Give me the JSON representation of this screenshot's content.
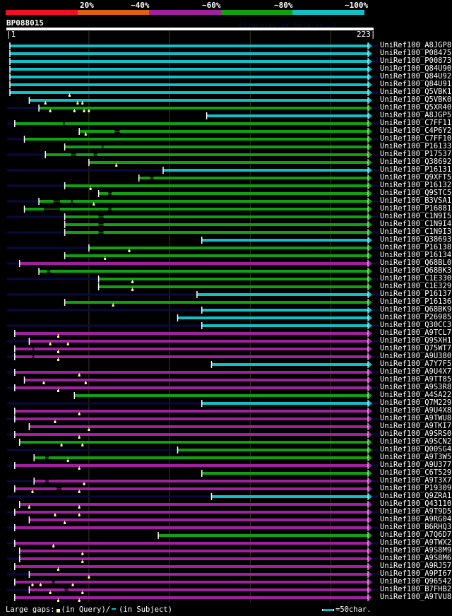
{
  "app": {
    "version_text": "AlignView.pm Beta rel.7"
  },
  "legend": {
    "labels": [
      "20%",
      "~40%",
      "~60%",
      "~80%",
      "~100%"
    ],
    "colors": [
      "#f01020",
      "#e06010",
      "#a020a0",
      "#10a010",
      "#10c0c8"
    ]
  },
  "query": {
    "name": "BP088015",
    "start": "1",
    "end": "223",
    "length": 223
  },
  "grid": {
    "positions": [
      50,
      100,
      150,
      200
    ]
  },
  "footer": {
    "gaps_prefix": "Large gaps:",
    "gaps_query": "(in Query)/",
    "gaps_subject": "(in Subject)",
    "scale_text": "=50char."
  },
  "hits": [
    {
      "id": "UniRef100_A8JGP8",
      "start": 1,
      "identity": "~100%",
      "qgaps": [],
      "sgaps": [],
      "lead": true
    },
    {
      "id": "UniRef100_P08475",
      "start": 1,
      "identity": "~100%",
      "qgaps": [],
      "sgaps": [],
      "lead": false
    },
    {
      "id": "UniRef100_P00873",
      "start": 1,
      "identity": "~100%",
      "qgaps": [],
      "sgaps": [],
      "lead": true
    },
    {
      "id": "UniRef100_Q84U90",
      "start": 1,
      "identity": "~100%",
      "qgaps": [],
      "sgaps": [],
      "lead": false
    },
    {
      "id": "UniRef100_Q84U92",
      "start": 1,
      "identity": "~100%",
      "qgaps": [],
      "sgaps": [],
      "lead": true
    },
    {
      "id": "UniRef100_Q84U91",
      "start": 1,
      "identity": "~100%",
      "qgaps": [],
      "sgaps": [],
      "lead": false
    },
    {
      "id": "UniRef100_Q5VBK1",
      "start": 1,
      "identity": "~100%",
      "qgaps": [
        38
      ],
      "sgaps": [],
      "lead": true
    },
    {
      "id": "UniRef100_Q5VBK0",
      "start": 13,
      "identity": "~100%",
      "qgaps": [
        23,
        43,
        46
      ],
      "sgaps": [],
      "lead": false
    },
    {
      "id": "UniRef100_Q5XR40",
      "start": 19,
      "identity": "~80%",
      "qgaps": [
        26,
        41,
        47,
        50
      ],
      "sgaps": [],
      "lead": true
    },
    {
      "id": "UniRef100_A8JGP5",
      "start": 123,
      "identity": "~100%",
      "qgaps": [],
      "sgaps": [],
      "lead": false
    },
    {
      "id": "UniRef100_C7FF11",
      "start": 4,
      "identity": "~80%",
      "qgaps": [],
      "sgaps": [
        [
          34,
          35
        ]
      ],
      "lead": true
    },
    {
      "id": "UniRef100_C4P6Y2",
      "start": 44,
      "identity": "~80%",
      "qgaps": [
        48
      ],
      "sgaps": [
        [
          66,
          69
        ]
      ],
      "lead": false
    },
    {
      "id": "UniRef100_C7FF10",
      "start": 10,
      "identity": "~80%",
      "qgaps": [],
      "sgaps": [],
      "lead": true
    },
    {
      "id": "UniRef100_P16133",
      "start": 35,
      "identity": "~80%",
      "qgaps": [],
      "sgaps": [
        [
          58,
          59
        ]
      ],
      "lead": false
    },
    {
      "id": "UniRef100_P17537",
      "start": 23,
      "identity": "~80%",
      "qgaps": [],
      "sgaps": [
        [
          39,
          42
        ],
        [
          53,
          55
        ]
      ],
      "lead": true
    },
    {
      "id": "UniRef100_Q38692",
      "start": 50,
      "identity": "~80%",
      "qgaps": [
        67
      ],
      "sgaps": [],
      "lead": false
    },
    {
      "id": "UniRef100_P16131",
      "start": 96,
      "identity": "~100%",
      "qgaps": [],
      "sgaps": [],
      "lead": true
    },
    {
      "id": "UniRef100_Q9XFT5",
      "start": 81,
      "identity": "~80%",
      "qgaps": [],
      "sgaps": [
        [
          88,
          90
        ]
      ],
      "lead": false
    },
    {
      "id": "UniRef100_P16132",
      "start": 35,
      "identity": "~80%",
      "qgaps": [
        51
      ],
      "sgaps": [],
      "lead": true
    },
    {
      "id": "UniRef100_Q9STC5",
      "start": 56,
      "identity": "~80%",
      "qgaps": [],
      "sgaps": [
        [
          62,
          64
        ]
      ],
      "lead": false
    },
    {
      "id": "UniRef100_B3VSA1",
      "start": 19,
      "identity": "~80%",
      "qgaps": [
        53
      ],
      "sgaps": [
        [
          28,
          32
        ],
        [
          39,
          40
        ]
      ],
      "lead": true
    },
    {
      "id": "UniRef100_P16881",
      "start": 10,
      "identity": "~80%",
      "qgaps": [],
      "sgaps": [
        [
          22,
          32
        ],
        [
          62,
          64
        ]
      ],
      "lead": false
    },
    {
      "id": "UniRef100_C1N9I5",
      "start": 35,
      "identity": "~80%",
      "qgaps": [],
      "sgaps": [
        [
          56,
          59
        ]
      ],
      "lead": true
    },
    {
      "id": "UniRef100_C1N9I4",
      "start": 35,
      "identity": "~80%",
      "qgaps": [],
      "sgaps": [
        [
          56,
          59
        ]
      ],
      "lead": false
    },
    {
      "id": "UniRef100_C1N9I3",
      "start": 35,
      "identity": "~80%",
      "qgaps": [],
      "sgaps": [
        [
          56,
          59
        ]
      ],
      "lead": true
    },
    {
      "id": "UniRef100_Q38693",
      "start": 120,
      "identity": "~100%",
      "qgaps": [],
      "sgaps": [],
      "lead": false
    },
    {
      "id": "UniRef100_P16138",
      "start": 50,
      "identity": "~80%",
      "qgaps": [
        75
      ],
      "sgaps": [],
      "lead": true
    },
    {
      "id": "UniRef100_P16134",
      "start": 35,
      "identity": "~80%",
      "qgaps": [
        60
      ],
      "sgaps": [],
      "lead": false
    },
    {
      "id": "UniRef100_Q68BL0",
      "start": 7,
      "identity": "~60%",
      "qgaps": [],
      "sgaps": [],
      "lead": true
    },
    {
      "id": "UniRef100_Q68BK3",
      "start": 19,
      "identity": "~80%",
      "qgaps": [],
      "sgaps": [
        [
          24,
          26
        ]
      ],
      "lead": false
    },
    {
      "id": "UniRef100_C1E330",
      "start": 56,
      "identity": "~80%",
      "qgaps": [
        77
      ],
      "sgaps": [],
      "lead": true
    },
    {
      "id": "UniRef100_C1E329",
      "start": 56,
      "identity": "~80%",
      "qgaps": [
        77
      ],
      "sgaps": [],
      "lead": false
    },
    {
      "id": "UniRef100_P16137",
      "start": 117,
      "identity": "~100%",
      "qgaps": [],
      "sgaps": [],
      "lead": true
    },
    {
      "id": "UniRef100_P16136",
      "start": 35,
      "identity": "~80%",
      "qgaps": [
        65
      ],
      "sgaps": [],
      "lead": false
    },
    {
      "id": "UniRef100_Q68BK9",
      "start": 120,
      "identity": "~100%",
      "qgaps": [],
      "sgaps": [],
      "lead": true
    },
    {
      "id": "UniRef100_P26985",
      "start": 105,
      "identity": "~100%",
      "qgaps": [],
      "sgaps": [],
      "lead": false
    },
    {
      "id": "UniRef100_Q30CC3",
      "start": 120,
      "identity": "~100%",
      "qgaps": [],
      "sgaps": [],
      "lead": true
    },
    {
      "id": "UniRef100_A9TCL7",
      "start": 4,
      "identity": "~60%",
      "qgaps": [
        31
      ],
      "sgaps": [],
      "lead": false
    },
    {
      "id": "UniRef100_Q9SXH1",
      "start": 13,
      "identity": "~60%",
      "qgaps": [
        26,
        37
      ],
      "sgaps": [],
      "lead": true
    },
    {
      "id": "UniRef100_Q75WT7",
      "start": 4,
      "identity": "~60%",
      "qgaps": [
        31
      ],
      "sgaps": [
        [
          15,
          16
        ]
      ],
      "lead": false
    },
    {
      "id": "UniRef100_A9U380",
      "start": 4,
      "identity": "~60%",
      "qgaps": [
        31
      ],
      "sgaps": [
        [
          15,
          16
        ]
      ],
      "lead": true
    },
    {
      "id": "UniRef100_A7Y7F5",
      "start": 126,
      "identity": "~100%",
      "qgaps": [],
      "sgaps": [],
      "lead": false
    },
    {
      "id": "UniRef100_A9U4X7",
      "start": 4,
      "identity": "~60%",
      "qgaps": [
        44
      ],
      "sgaps": [],
      "lead": true
    },
    {
      "id": "UniRef100_A9TT85",
      "start": 10,
      "identity": "~60%",
      "qgaps": [
        22,
        48
      ],
      "sgaps": [],
      "lead": false
    },
    {
      "id": "UniRef100_A9S3R8",
      "start": 4,
      "identity": "~60%",
      "qgaps": [
        31
      ],
      "sgaps": [],
      "lead": true
    },
    {
      "id": "UniRef100_A4SA22",
      "start": 41,
      "identity": "~80%",
      "qgaps": [],
      "sgaps": [],
      "lead": false
    },
    {
      "id": "UniRef100_Q7M229",
      "start": 120,
      "identity": "~100%",
      "qgaps": [],
      "sgaps": [],
      "lead": true
    },
    {
      "id": "UniRef100_A9U4X8",
      "start": 4,
      "identity": "~60%",
      "qgaps": [
        44
      ],
      "sgaps": [],
      "lead": false
    },
    {
      "id": "UniRef100_A9TWU8",
      "start": 4,
      "identity": "~60%",
      "qgaps": [
        29
      ],
      "sgaps": [],
      "lead": true
    },
    {
      "id": "UniRef100_A9TKI7",
      "start": 13,
      "identity": "~60%",
      "qgaps": [
        50
      ],
      "sgaps": [],
      "lead": false
    },
    {
      "id": "UniRef100_A9SRS0",
      "start": 4,
      "identity": "~60%",
      "qgaps": [
        44
      ],
      "sgaps": [],
      "lead": true
    },
    {
      "id": "UniRef100_A9SCN2",
      "start": 7,
      "identity": "~80%",
      "qgaps": [
        33,
        46
      ],
      "sgaps": [],
      "lead": false
    },
    {
      "id": "UniRef100_Q00SG4",
      "start": 105,
      "identity": "~80%",
      "qgaps": [],
      "sgaps": [],
      "lead": true
    },
    {
      "id": "UniRef100_A9T3W5",
      "start": 16,
      "identity": "~80%",
      "qgaps": [
        37
      ],
      "sgaps": [
        [
          23,
          25
        ]
      ],
      "lead": false
    },
    {
      "id": "UniRef100_A9U377",
      "start": 4,
      "identity": "~60%",
      "qgaps": [
        44
      ],
      "sgaps": [],
      "lead": true
    },
    {
      "id": "UniRef100_C6T529",
      "start": 120,
      "identity": "~80%",
      "qgaps": [],
      "sgaps": [],
      "lead": false
    },
    {
      "id": "UniRef100_A9T3X7",
      "start": 16,
      "identity": "~60%",
      "qgaps": [
        47
      ],
      "sgaps": [
        [
          23,
          25
        ]
      ],
      "lead": true
    },
    {
      "id": "UniRef100_P19309",
      "start": 4,
      "identity": "~60%",
      "qgaps": [
        15,
        44
      ],
      "sgaps": [
        [
          30,
          33
        ]
      ],
      "lead": false
    },
    {
      "id": "UniRef100_Q9ZRA1",
      "start": 126,
      "identity": "~100%",
      "qgaps": [],
      "sgaps": [],
      "lead": true
    },
    {
      "id": "UniRef100_Q43110",
      "start": 7,
      "identity": "~60%",
      "qgaps": [
        13,
        44
      ],
      "sgaps": [],
      "lead": false
    },
    {
      "id": "UniRef100_A9T9D5",
      "start": 4,
      "identity": "~60%",
      "qgaps": [
        29,
        44
      ],
      "sgaps": [],
      "lead": true
    },
    {
      "id": "UniRef100_A9RG04",
      "start": 13,
      "identity": "~60%",
      "qgaps": [
        35
      ],
      "sgaps": [],
      "lead": false
    },
    {
      "id": "UniRef100_B6RHQ3",
      "start": 4,
      "identity": "~60%",
      "qgaps": [],
      "sgaps": [],
      "lead": true
    },
    {
      "id": "UniRef100_A7Q6D7",
      "start": 93,
      "identity": "~80%",
      "qgaps": [],
      "sgaps": [],
      "lead": false
    },
    {
      "id": "UniRef100_A9TWX2",
      "start": 4,
      "identity": "~60%",
      "qgaps": [
        28
      ],
      "sgaps": [],
      "lead": true
    },
    {
      "id": "UniRef100_A9S8M9",
      "start": 7,
      "identity": "~60%",
      "qgaps": [
        46
      ],
      "sgaps": [],
      "lead": false
    },
    {
      "id": "UniRef100_A9S8M6",
      "start": 7,
      "identity": "~60%",
      "qgaps": [
        46
      ],
      "sgaps": [],
      "lead": true
    },
    {
      "id": "UniRef100_A9RJ57",
      "start": 4,
      "identity": "~60%",
      "qgaps": [
        31
      ],
      "sgaps": [],
      "lead": false
    },
    {
      "id": "UniRef100_A9PI67",
      "start": 13,
      "identity": "~60%",
      "qgaps": [
        50
      ],
      "sgaps": [],
      "lead": true
    },
    {
      "id": "UniRef100_Q96542",
      "start": 4,
      "identity": "~60%",
      "qgaps": [
        15,
        20,
        40
      ],
      "sgaps": [
        [
          27,
          29
        ]
      ],
      "lead": false
    },
    {
      "id": "UniRef100_B7FHB2",
      "start": 13,
      "identity": "~60%",
      "qgaps": [
        26,
        46
      ],
      "sgaps": [
        [
          35,
          37
        ]
      ],
      "lead": true
    },
    {
      "id": "UniRef100_A9TVU8",
      "start": 4,
      "identity": "~60%",
      "qgaps": [
        31,
        44
      ],
      "sgaps": [],
      "lead": false
    }
  ]
}
